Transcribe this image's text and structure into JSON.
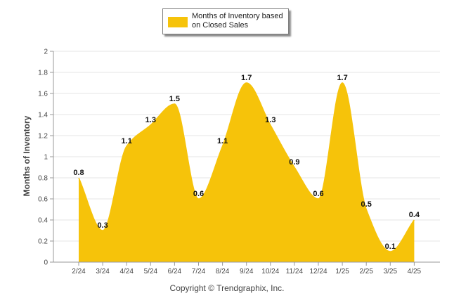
{
  "legend": {
    "label": "Months of Inventory based on Closed Sales",
    "color": "#f6c30a"
  },
  "footer": {
    "text": "Copyright © Trendgraphix, Inc."
  },
  "chart_data": {
    "type": "area",
    "categories": [
      "2/24",
      "3/24",
      "4/24",
      "5/24",
      "6/24",
      "7/24",
      "8/24",
      "9/24",
      "10/24",
      "11/24",
      "12/24",
      "1/25",
      "2/25",
      "3/25",
      "4/25"
    ],
    "series": [
      {
        "name": "Months of Inventory based on Closed Sales",
        "values": [
          0.8,
          0.3,
          1.1,
          1.3,
          1.5,
          0.6,
          1.1,
          1.7,
          1.3,
          0.9,
          0.6,
          1.7,
          0.5,
          0.1,
          0.4
        ],
        "color": "#f6c30a"
      }
    ],
    "data_labels": [
      "0.8",
      "0.3",
      "1.1",
      "1.3",
      "1.5",
      "0.6",
      "1.1",
      "1.7",
      "1.3",
      "0.9",
      "0.6",
      "1.7",
      "0.5",
      "0.1",
      "0.4"
    ],
    "ylabel": "Months of Inventory",
    "xlabel": "",
    "ylim": [
      0,
      2
    ],
    "yticks": [
      0,
      0.2,
      0.4,
      0.6,
      0.8,
      1,
      1.2,
      1.4,
      1.6,
      1.8,
      2
    ],
    "ytick_labels": [
      "0",
      "0.2",
      "0.4",
      "0.6",
      "0.8",
      "1",
      "1.2",
      "1.4",
      "1.6",
      "1.8",
      "2"
    ],
    "grid": true,
    "legend_position": "top-center"
  }
}
